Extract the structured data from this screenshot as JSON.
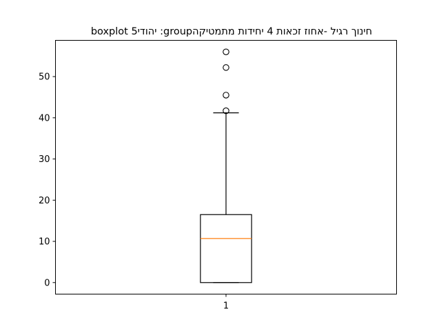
{
  "chart_data": {
    "type": "boxplot",
    "title": "חינוך רגיל  -אחוז זכאות 4 יחידות מתמטיקהgroup: יהודי5 boxplot",
    "xlabel": "",
    "ylabel": "",
    "categories": [
      "1"
    ],
    "x_ticks": [
      "1"
    ],
    "y_ticks": [
      0,
      10,
      20,
      30,
      40,
      50
    ],
    "ylim": [
      -2.8,
      58.8
    ],
    "grid": false,
    "boxes": [
      {
        "category": "1",
        "whisker_low": 0,
        "q1": 0,
        "median": 10.7,
        "q3": 16.5,
        "whisker_high": 41.2,
        "outliers": [
          41.7,
          45.5,
          52.2,
          56.0
        ]
      }
    ],
    "colors": {
      "box": "#000000",
      "median": "#ff7f0e",
      "flier": "#000000",
      "background": "#ffffff"
    }
  }
}
